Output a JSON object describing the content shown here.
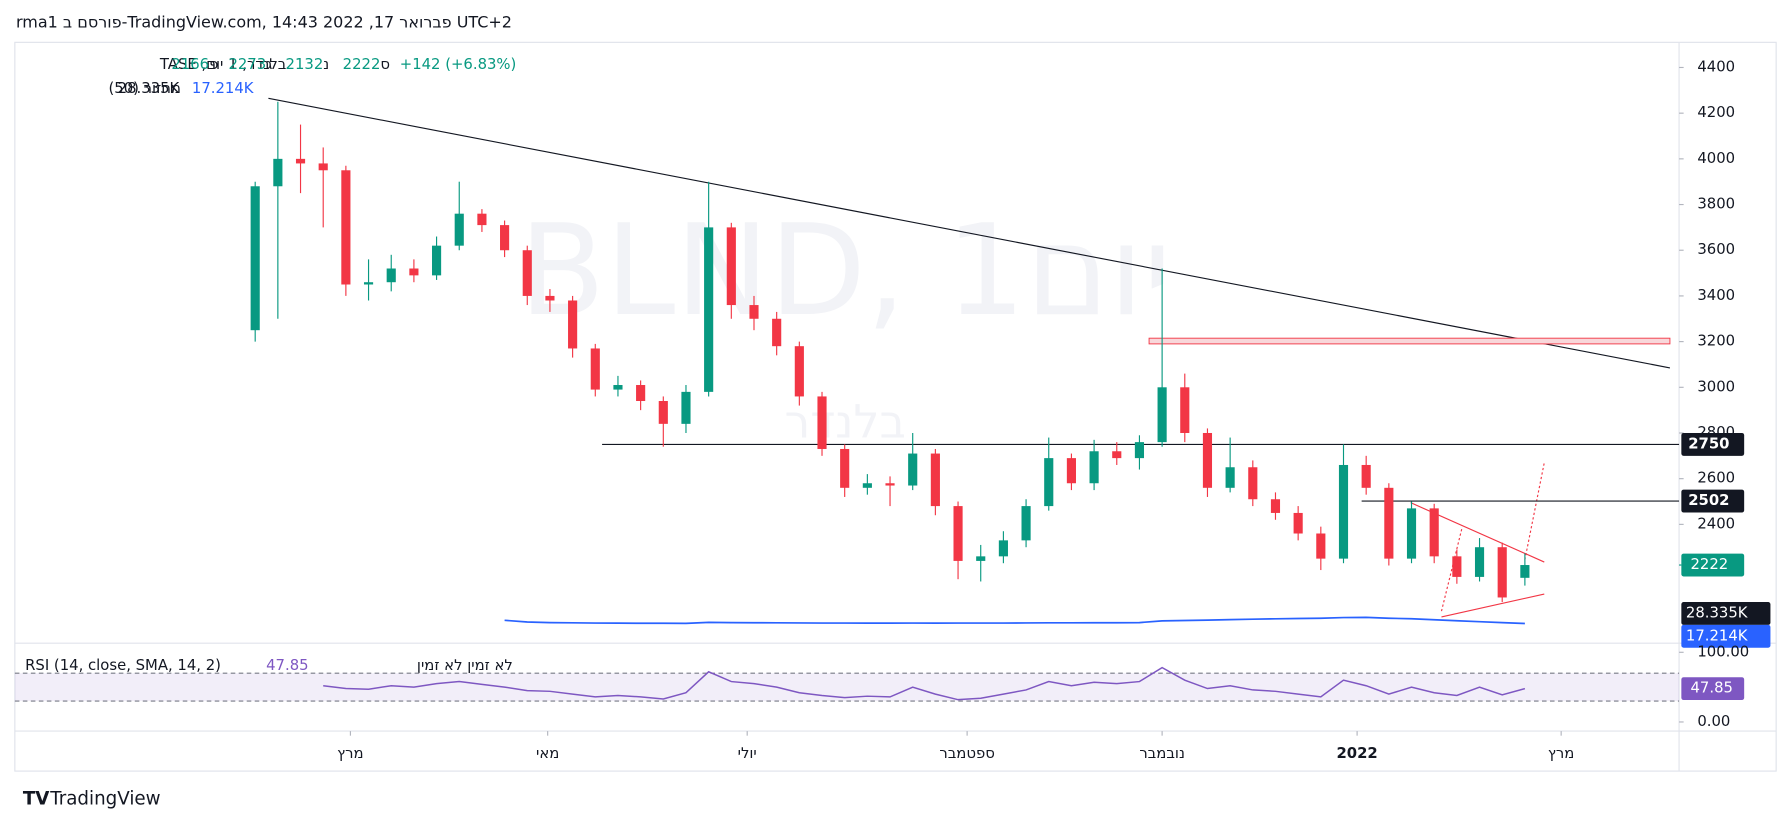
{
  "header": "rma1 פורסם ב-TradingView.com, פברואר 17, 2022 14:43 UTC+2",
  "footer": "TradingView",
  "chart_data": {
    "type": "candlestick",
    "watermark": "BLND, 1יום",
    "watermark_sub": "בלנדר",
    "symbol": "בלנדר, 1 יום, TASE",
    "ohlc_legend": [
      {
        "label": "פ",
        "value": 2166
      },
      {
        "label": "ג",
        "value": 2273
      },
      {
        "label": "נ",
        "value": 2132
      },
      {
        "label": "ס",
        "value": 2222
      }
    ],
    "change": "+142 (+6.83%)",
    "up_color": "#089981",
    "down_color": "#f23645",
    "ylim": [
      1880,
      4510
    ],
    "yticks": [
      2400,
      2600,
      2800,
      3000,
      3200,
      3400,
      3600,
      3800,
      4000,
      4200,
      4400
    ],
    "xlim": [
      -10.6,
      62.8
    ],
    "xticks": [
      {
        "value": 4.2,
        "label": "מרץ"
      },
      {
        "value": 12.9,
        "label": "מאי"
      },
      {
        "value": 21.7,
        "label": "יולי"
      },
      {
        "value": 31.4,
        "label": "ספטמבר"
      },
      {
        "value": 40.0,
        "label": "נובמבר"
      },
      {
        "value": 48.6,
        "label": "2022"
      },
      {
        "value": 57.6,
        "label": "מרץ"
      }
    ],
    "open": [
      3250,
      3880,
      4000,
      3980,
      3950,
      3450,
      3460,
      3520,
      3490,
      3620,
      3760,
      3710,
      3600,
      3400,
      3380,
      3170,
      2990,
      3010,
      2940,
      2840,
      2980,
      3700,
      3360,
      3300,
      3180,
      2960,
      2730,
      2560,
      2580,
      2570,
      2710,
      2480,
      2240,
      2260,
      2330,
      2480,
      2690,
      2580,
      2720,
      2690,
      2760,
      3000,
      2800,
      2560,
      2650,
      2510,
      2450,
      2360,
      2250,
      2660,
      2560,
      2250,
      2470,
      2260,
      2170,
      2300,
      2166
    ],
    "high": [
      3900,
      4250,
      4150,
      4050,
      3970,
      3560,
      3580,
      3560,
      3660,
      3900,
      3780,
      3730,
      3620,
      3430,
      3400,
      3190,
      3050,
      3030,
      2960,
      3010,
      3900,
      3720,
      3400,
      3330,
      3200,
      2980,
      2750,
      2620,
      2610,
      2800,
      2730,
      2500,
      2310,
      2370,
      2510,
      2780,
      2710,
      2770,
      2760,
      2790,
      3520,
      3060,
      2820,
      2780,
      2680,
      2540,
      2480,
      2390,
      2750,
      2700,
      2580,
      2500,
      2490,
      2290,
      2340,
      2320,
      2273
    ],
    "low": [
      3200,
      3300,
      3850,
      3700,
      3400,
      3380,
      3420,
      3460,
      3470,
      3600,
      3680,
      3570,
      3360,
      3330,
      3130,
      2960,
      2960,
      2900,
      2740,
      2800,
      2960,
      3300,
      3250,
      3140,
      2920,
      2700,
      2520,
      2530,
      2480,
      2550,
      2440,
      2160,
      2150,
      2230,
      2300,
      2460,
      2550,
      2550,
      2660,
      2640,
      2740,
      2760,
      2520,
      2540,
      2480,
      2420,
      2330,
      2200,
      2230,
      2530,
      2220,
      2230,
      2230,
      2140,
      2150,
      2060,
      2132
    ],
    "close": [
      3880,
      4000,
      3980,
      3950,
      3450,
      3460,
      3520,
      3490,
      3620,
      3760,
      3710,
      3600,
      3400,
      3380,
      3170,
      2990,
      3010,
      2940,
      2840,
      2980,
      3700,
      3360,
      3300,
      3180,
      2960,
      2730,
      2560,
      2580,
      2570,
      2710,
      2480,
      2240,
      2260,
      2330,
      2480,
      2690,
      2580,
      2720,
      2690,
      2760,
      3000,
      2800,
      2560,
      2650,
      2510,
      2450,
      2360,
      2250,
      2660,
      2560,
      2250,
      2470,
      2260,
      2170,
      2300,
      2080,
      2222
    ],
    "last_price": 2222,
    "levels": [
      {
        "value": 2750,
        "start": 15.3
      },
      {
        "value": 2502,
        "start": 48.8
      }
    ],
    "volume": {
      "name": "מחזור (50)",
      "ylim": [
        0,
        100
      ],
      "color": "#2962ff",
      "last": {
        "value": 28.335,
        "label": "28.335K"
      },
      "ma_last": {
        "value": 17.214,
        "label": "17.214K"
      },
      "ma": [
        null,
        null,
        null,
        null,
        null,
        null,
        null,
        null,
        null,
        null,
        null,
        20,
        18.5,
        18,
        17.8,
        17.6,
        17.5,
        17.4,
        17.4,
        17.3,
        18.2,
        18,
        17.9,
        17.8,
        17.7,
        17.6,
        17.6,
        17.5,
        17.5,
        17.6,
        17.5,
        17.6,
        17.6,
        17.6,
        17.7,
        17.8,
        17.8,
        17.9,
        17.9,
        18,
        19.5,
        19.8,
        20.2,
        20.6,
        21,
        21.3,
        21.6,
        21.8,
        22.4,
        22.6,
        21.8,
        21.4,
        20.5,
        19.6,
        18.8,
        18,
        17.214
      ]
    },
    "rsi": {
      "name": "RSI (14, close, SMA, 14, 2)",
      "na": "לא זמין  לא זמין",
      "color": "#7e57c2",
      "ylim": [
        0,
        100
      ],
      "yticks": [
        {
          "value": 100,
          "label": "100.00"
        },
        {
          "value": 0,
          "label": "0.00"
        }
      ],
      "bands": [
        30,
        70
      ],
      "last": 47.85,
      "values": [
        null,
        null,
        null,
        52,
        48,
        47,
        52,
        50,
        55,
        58,
        54,
        50,
        45,
        44,
        40,
        36,
        38,
        36,
        33,
        42,
        72,
        58,
        55,
        50,
        42,
        38,
        35,
        37,
        36,
        50,
        40,
        32,
        34,
        40,
        46,
        58,
        52,
        57,
        55,
        58,
        78,
        60,
        48,
        52,
        46,
        44,
        40,
        36,
        60,
        52,
        40,
        50,
        42,
        38,
        50,
        39,
        47.85
      ]
    }
  }
}
